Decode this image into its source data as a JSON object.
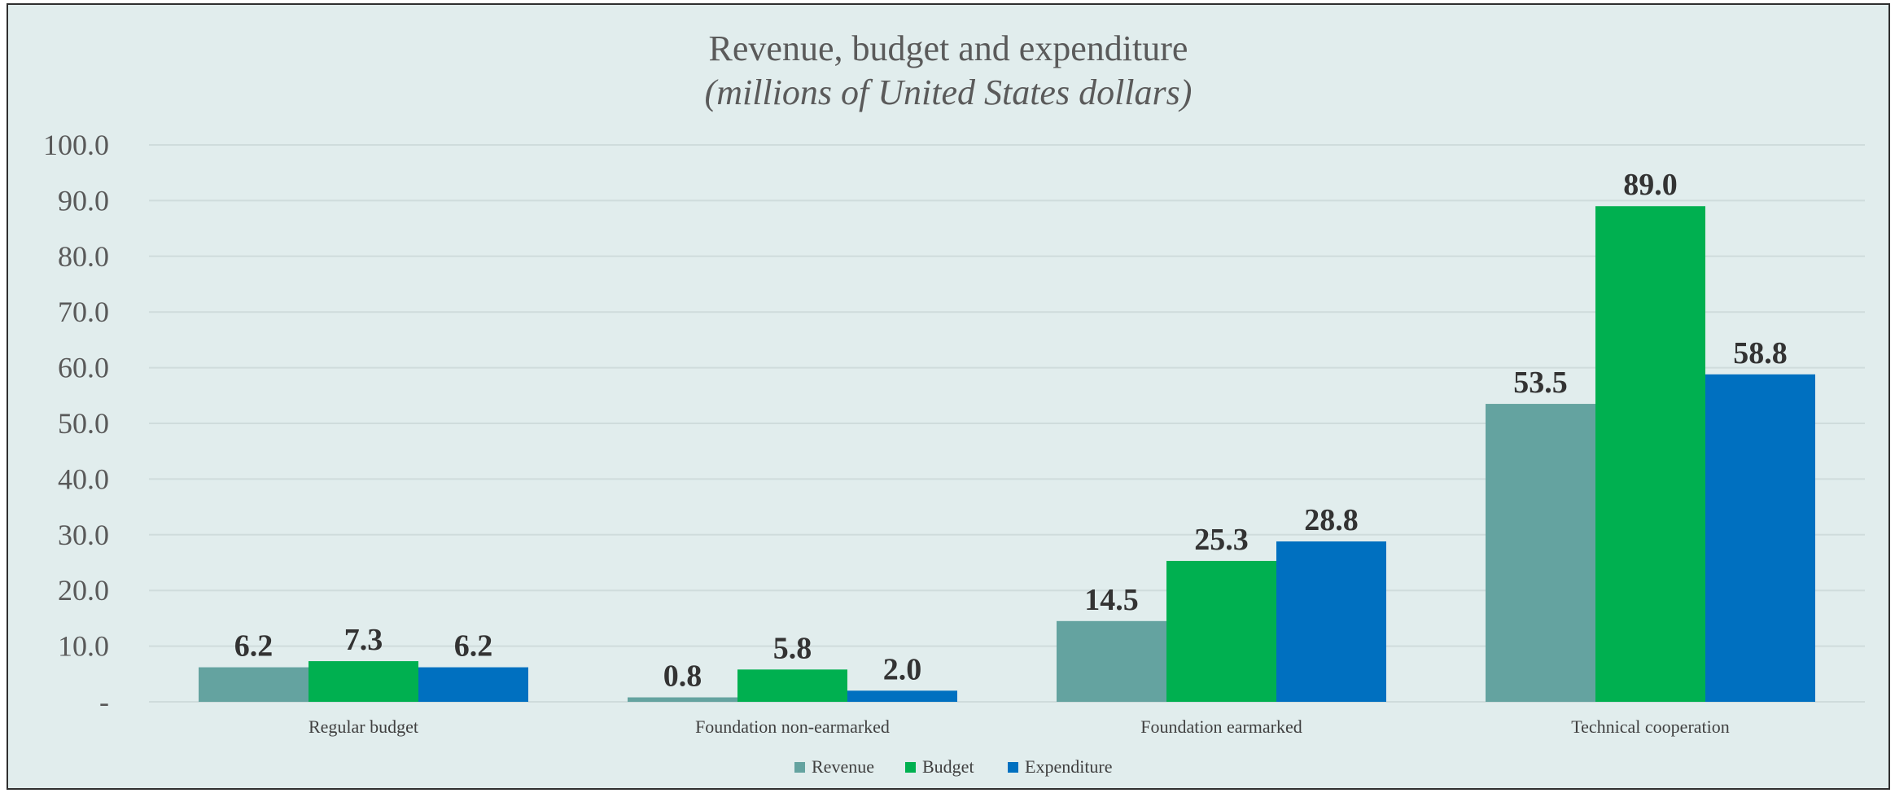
{
  "chart_data": {
    "type": "bar",
    "title": "Revenue, budget and expenditure",
    "subtitle": "(millions of United States dollars)",
    "categories": [
      "Regular budget",
      "Foundation non-earmarked",
      "Foundation earmarked",
      "Technical cooperation"
    ],
    "series": [
      {
        "name": "Revenue",
        "color": "#64a3a0",
        "values": [
          6.2,
          0.8,
          14.5,
          53.5
        ],
        "labels": [
          "6.2",
          "0.8",
          "14.5",
          "53.5"
        ]
      },
      {
        "name": "Budget",
        "color": "#00b050",
        "values": [
          7.3,
          5.8,
          25.3,
          89.0
        ],
        "labels": [
          "7.3",
          "5.8",
          "25.3",
          "89.0"
        ]
      },
      {
        "name": "Expenditure",
        "color": "#0070c0",
        "values": [
          6.2,
          2.0,
          28.8,
          58.8
        ],
        "labels": [
          "6.2",
          "2.0",
          "28.8",
          "58.8"
        ]
      }
    ],
    "ylim": [
      0,
      100
    ],
    "yticks": [
      0,
      10,
      20,
      30,
      40,
      50,
      60,
      70,
      80,
      90,
      100
    ],
    "ytick_labels": [
      "-",
      "10.0",
      "20.0",
      "30.0",
      "40.0",
      "50.0",
      "60.0",
      "70.0",
      "80.0",
      "90.0",
      "100.0"
    ],
    "grid": true,
    "legend_position": "bottom"
  }
}
